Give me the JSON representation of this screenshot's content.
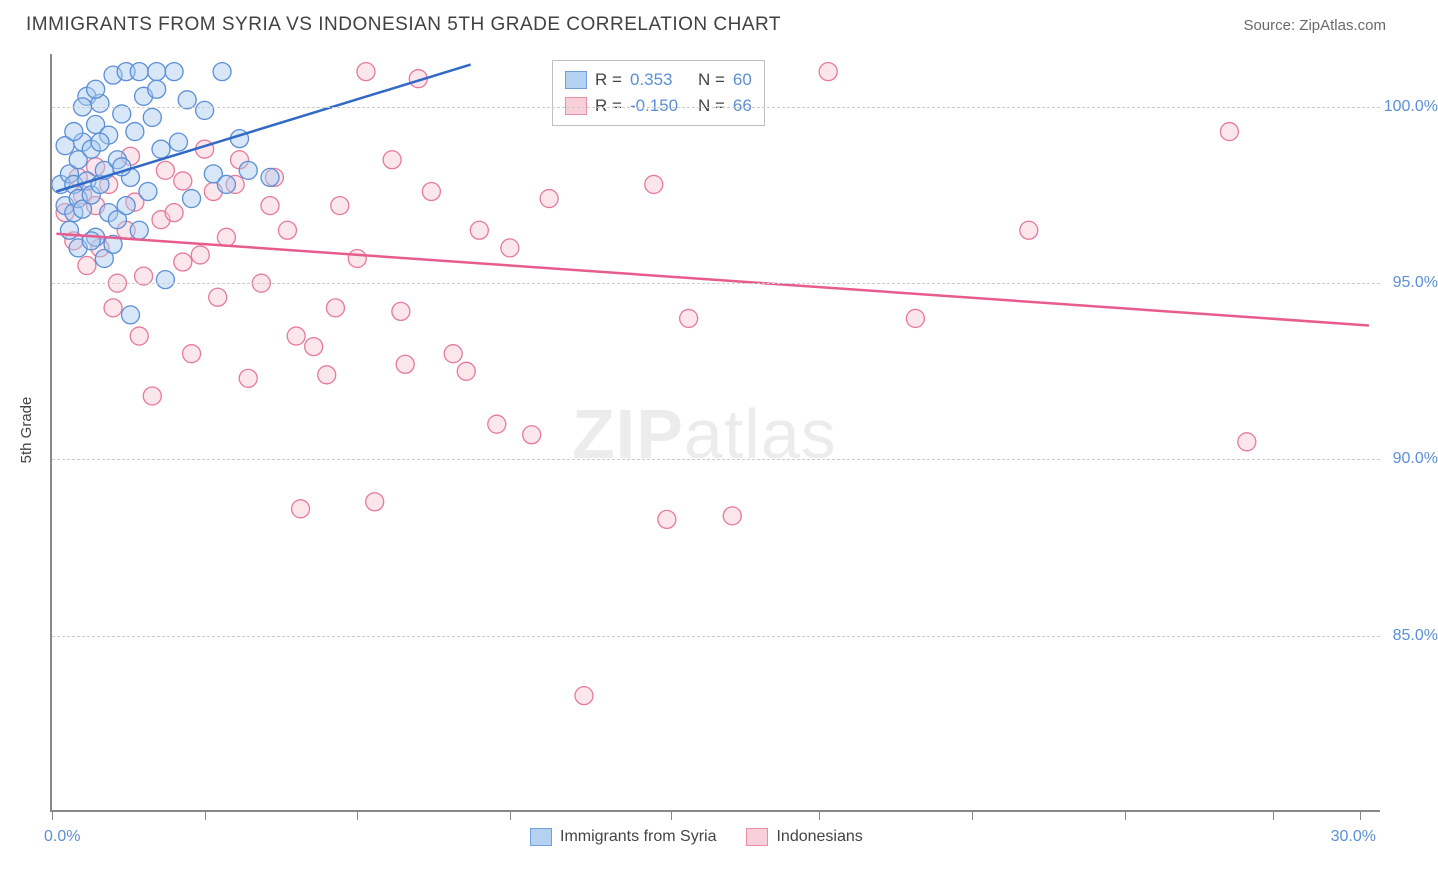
{
  "header": {
    "title": "IMMIGRANTS FROM SYRIA VS INDONESIAN 5TH GRADE CORRELATION CHART",
    "source": "Source: ZipAtlas.com"
  },
  "axis": {
    "y_title": "5th Grade",
    "y_ticks": [
      85.0,
      90.0,
      95.0,
      100.0
    ],
    "y_tick_labels": [
      "85.0%",
      "90.0%",
      "95.0%",
      "100.0%"
    ],
    "ylim": [
      80.0,
      101.5
    ],
    "x_ticks": [
      0,
      3.5,
      7.0,
      10.5,
      14.2,
      17.6,
      21.1,
      24.6,
      28.0,
      30.0
    ],
    "x_labels": {
      "0": "0.0%",
      "30": "30.0%"
    },
    "xlim": [
      0,
      30.5
    ]
  },
  "colors": {
    "series_a_fill": "#a9c9ef",
    "series_a_stroke": "#5b8fd6",
    "series_b_fill": "#f7c8d4",
    "series_b_stroke": "#e67a9a",
    "trend_a": "#3169c6",
    "trend_b": "#e75c8d",
    "grid": "#cccccc",
    "axis": "#888888",
    "text_value": "#5b8fd6",
    "background": "#ffffff"
  },
  "marker": {
    "radius": 9,
    "fill_opacity": 0.45,
    "stroke_width": 1.3
  },
  "series_a": {
    "label": "Immigrants from Syria",
    "R": "0.353",
    "N": "60",
    "trend": {
      "x1": 0.1,
      "y1": 97.6,
      "x2": 9.6,
      "y2": 101.2
    },
    "points": [
      [
        0.2,
        97.8
      ],
      [
        0.3,
        97.2
      ],
      [
        0.4,
        98.1
      ],
      [
        0.5,
        97.0
      ],
      [
        0.5,
        97.8
      ],
      [
        0.6,
        98.5
      ],
      [
        0.6,
        97.4
      ],
      [
        0.7,
        99.0
      ],
      [
        0.7,
        97.1
      ],
      [
        0.8,
        97.9
      ],
      [
        0.8,
        100.3
      ],
      [
        0.9,
        98.8
      ],
      [
        0.9,
        97.5
      ],
      [
        1.0,
        99.5
      ],
      [
        1.0,
        96.3
      ],
      [
        1.1,
        100.1
      ],
      [
        1.1,
        97.8
      ],
      [
        1.2,
        98.2
      ],
      [
        1.3,
        99.2
      ],
      [
        1.3,
        97.0
      ],
      [
        1.4,
        100.9
      ],
      [
        1.5,
        98.5
      ],
      [
        1.5,
        96.8
      ],
      [
        1.6,
        99.8
      ],
      [
        1.7,
        101.0
      ],
      [
        1.8,
        94.1
      ],
      [
        1.8,
        98.0
      ],
      [
        1.9,
        99.3
      ],
      [
        2.0,
        101.0
      ],
      [
        2.1,
        100.3
      ],
      [
        2.2,
        97.6
      ],
      [
        2.3,
        99.7
      ],
      [
        2.4,
        101.0
      ],
      [
        2.5,
        98.8
      ],
      [
        2.6,
        95.1
      ],
      [
        2.8,
        101.0
      ],
      [
        2.9,
        99.0
      ],
      [
        3.1,
        100.2
      ],
      [
        3.2,
        97.4
      ],
      [
        3.5,
        99.9
      ],
      [
        3.7,
        98.1
      ],
      [
        3.9,
        101.0
      ],
      [
        4.0,
        97.8
      ],
      [
        4.3,
        99.1
      ],
      [
        4.5,
        98.2
      ],
      [
        5.0,
        98.0
      ],
      [
        0.4,
        96.5
      ],
      [
        0.6,
        96.0
      ],
      [
        0.9,
        96.2
      ],
      [
        1.2,
        95.7
      ],
      [
        0.3,
        98.9
      ],
      [
        0.5,
        99.3
      ],
      [
        0.7,
        100.0
      ],
      [
        1.0,
        100.5
      ],
      [
        1.4,
        96.1
      ],
      [
        1.7,
        97.2
      ],
      [
        2.0,
        96.5
      ],
      [
        1.1,
        99.0
      ],
      [
        1.6,
        98.3
      ],
      [
        2.4,
        100.5
      ]
    ]
  },
  "series_b": {
    "label": "Indonesians",
    "R": "-0.150",
    "N": "66",
    "trend": {
      "x1": 0.1,
      "y1": 96.4,
      "x2": 30.2,
      "y2": 93.8
    },
    "points": [
      [
        0.3,
        97.0
      ],
      [
        0.5,
        96.2
      ],
      [
        0.7,
        97.5
      ],
      [
        0.8,
        95.5
      ],
      [
        1.0,
        97.2
      ],
      [
        1.1,
        96.0
      ],
      [
        1.3,
        97.8
      ],
      [
        1.5,
        95.0
      ],
      [
        1.7,
        96.5
      ],
      [
        1.9,
        97.3
      ],
      [
        2.1,
        95.2
      ],
      [
        2.3,
        91.8
      ],
      [
        2.5,
        96.8
      ],
      [
        2.8,
        97.0
      ],
      [
        3.0,
        95.6
      ],
      [
        3.2,
        93.0
      ],
      [
        3.4,
        95.8
      ],
      [
        3.7,
        97.6
      ],
      [
        4.0,
        96.3
      ],
      [
        4.2,
        97.8
      ],
      [
        4.5,
        92.3
      ],
      [
        4.8,
        95.0
      ],
      [
        5.1,
        98.0
      ],
      [
        5.4,
        96.5
      ],
      [
        5.7,
        88.6
      ],
      [
        6.0,
        93.2
      ],
      [
        6.3,
        92.4
      ],
      [
        6.6,
        97.2
      ],
      [
        7.0,
        95.7
      ],
      [
        7.2,
        101.0
      ],
      [
        7.4,
        88.8
      ],
      [
        7.8,
        98.5
      ],
      [
        8.1,
        92.7
      ],
      [
        8.4,
        100.8
      ],
      [
        8.7,
        97.6
      ],
      [
        9.2,
        93.0
      ],
      [
        9.5,
        92.5
      ],
      [
        9.8,
        96.5
      ],
      [
        10.2,
        91.0
      ],
      [
        10.5,
        96.0
      ],
      [
        11.0,
        90.7
      ],
      [
        11.4,
        97.4
      ],
      [
        12.2,
        83.3
      ],
      [
        13.8,
        97.8
      ],
      [
        14.1,
        88.3
      ],
      [
        14.6,
        94.0
      ],
      [
        15.6,
        88.4
      ],
      [
        17.8,
        101.0
      ],
      [
        19.8,
        94.0
      ],
      [
        22.4,
        96.5
      ],
      [
        27.0,
        99.3
      ],
      [
        27.4,
        90.5
      ],
      [
        3.0,
        97.9
      ],
      [
        3.8,
        94.6
      ],
      [
        5.0,
        97.2
      ],
      [
        6.5,
        94.3
      ],
      [
        1.0,
        98.3
      ],
      [
        1.8,
        98.6
      ],
      [
        2.6,
        98.2
      ],
      [
        4.3,
        98.5
      ],
      [
        5.6,
        93.5
      ],
      [
        8.0,
        94.2
      ],
      [
        3.5,
        98.8
      ],
      [
        2.0,
        93.5
      ],
      [
        1.4,
        94.3
      ],
      [
        0.6,
        98.0
      ]
    ]
  },
  "legend_top": {
    "r_label": "R =",
    "n_label": "N ="
  },
  "watermark": {
    "zip": "ZIP",
    "atlas": "atlas"
  }
}
